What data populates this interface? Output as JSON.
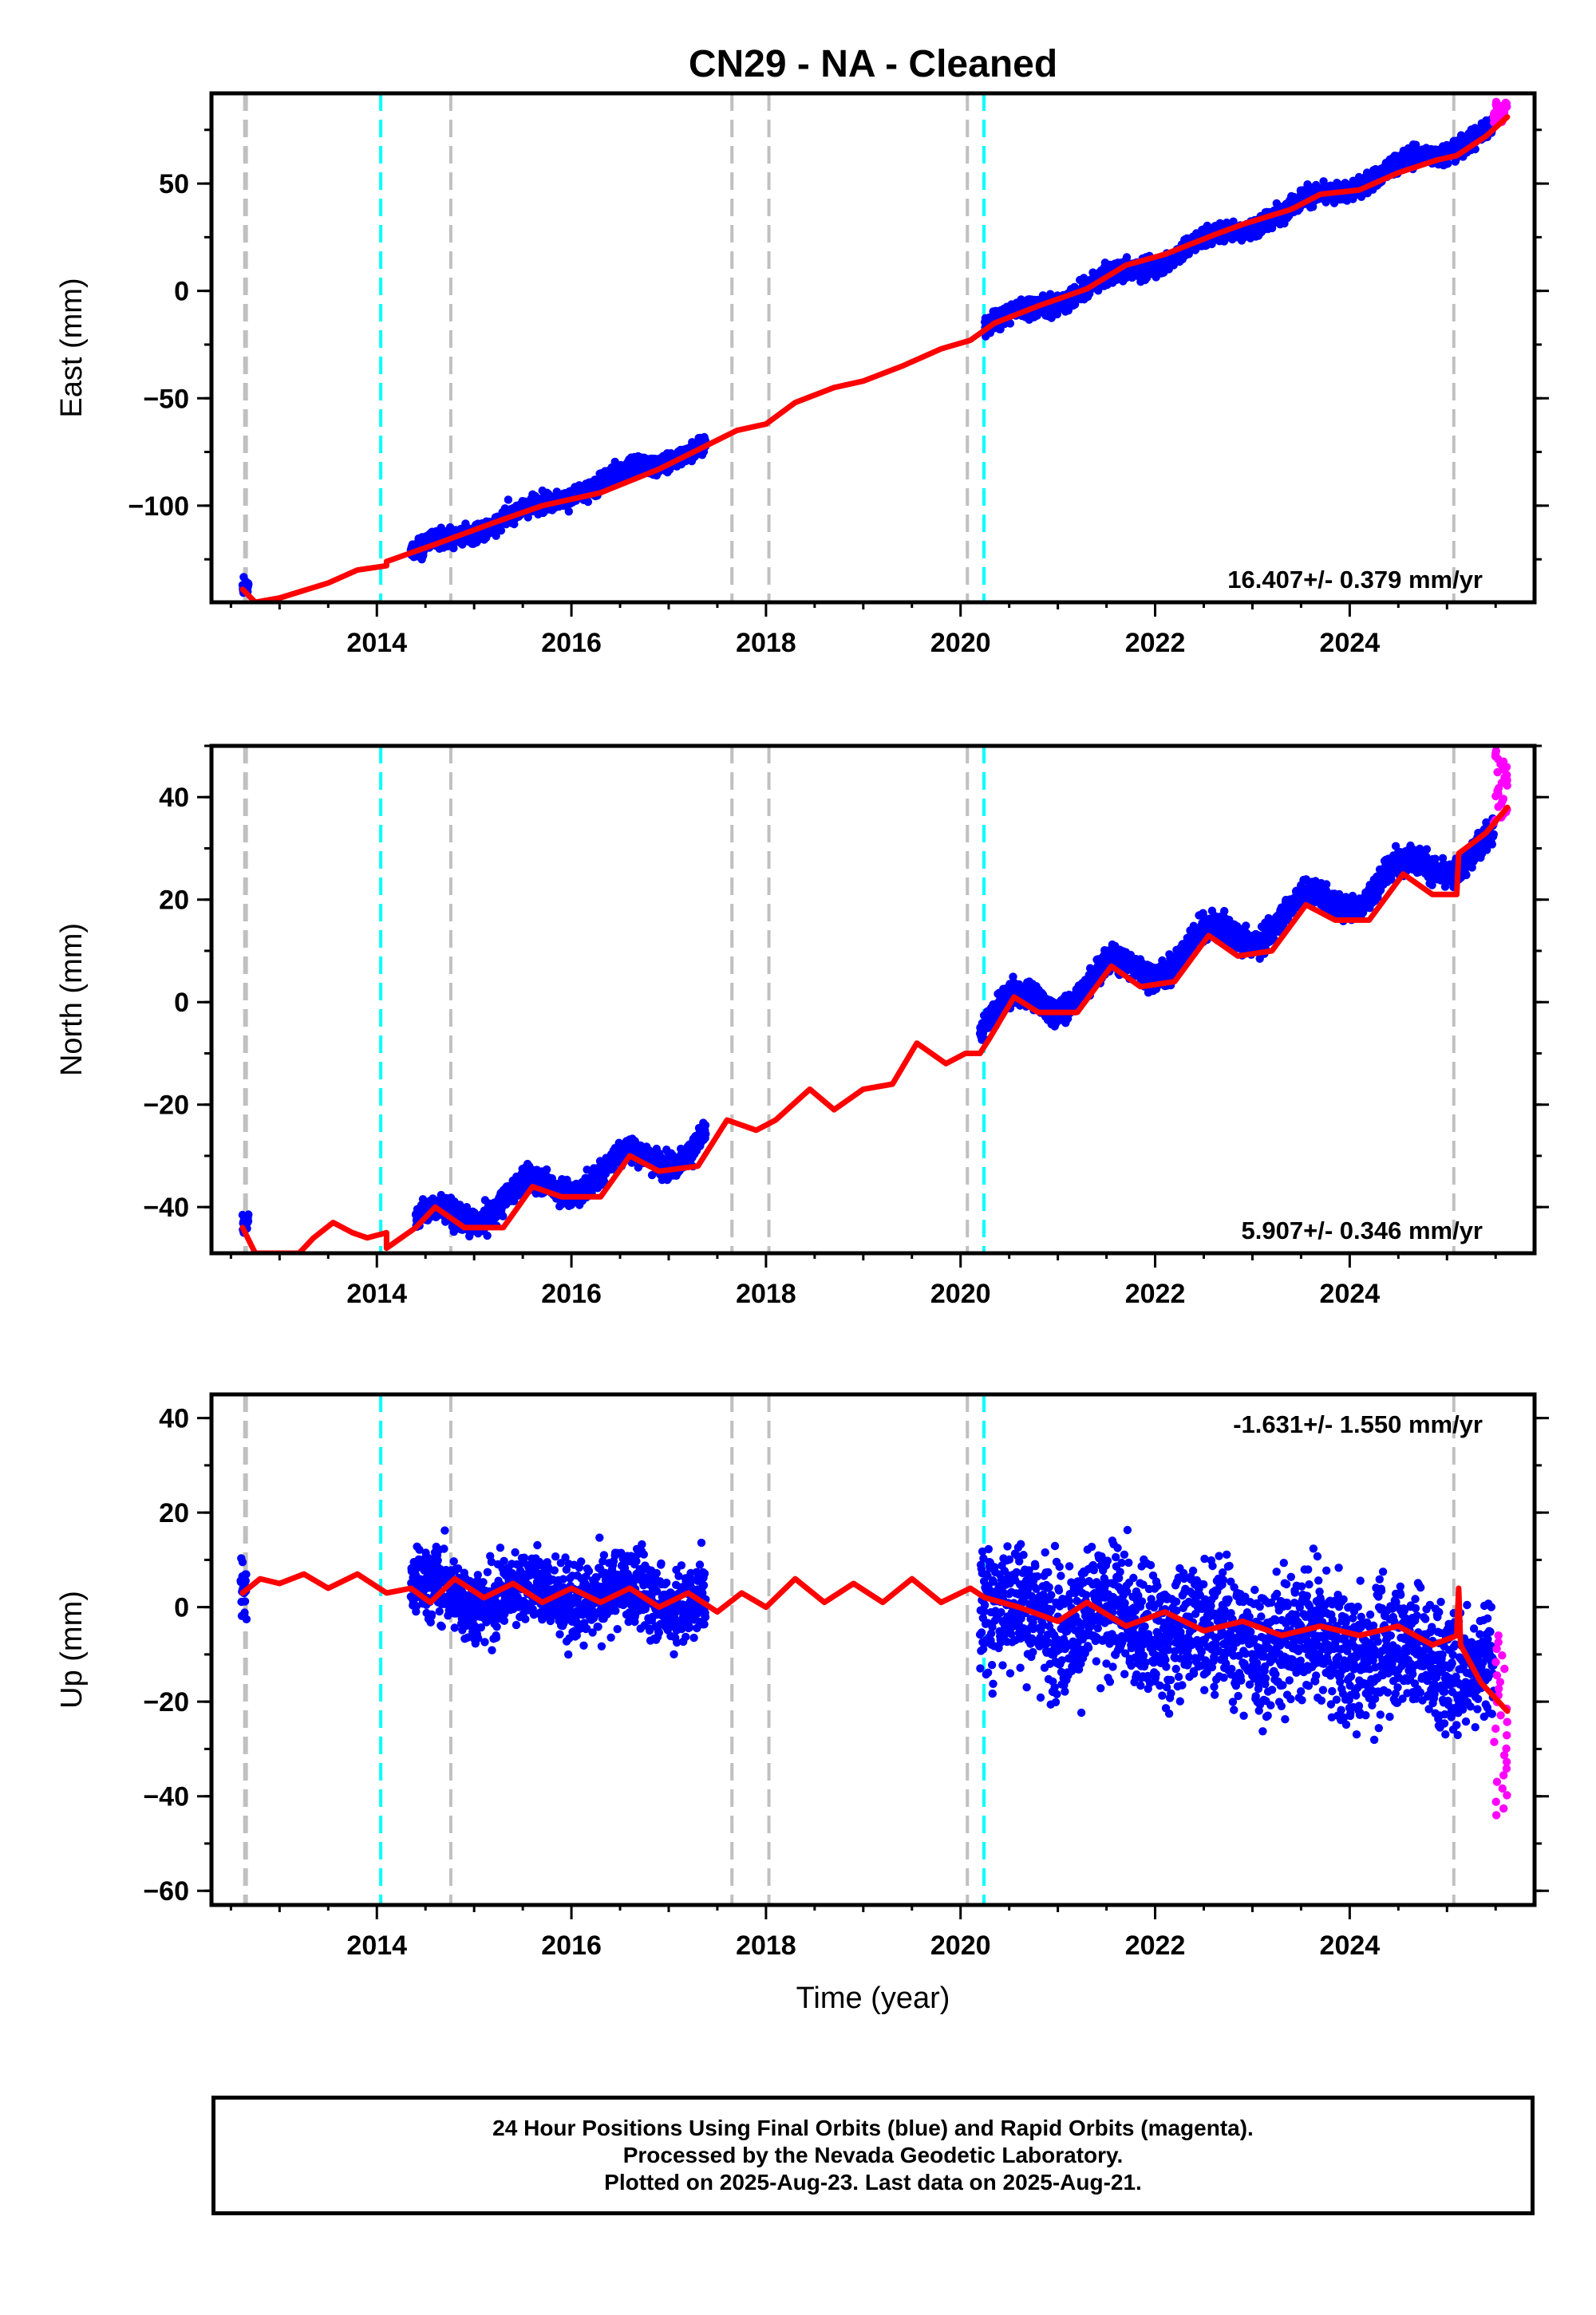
{
  "title": "CN29  - NA - Cleaned",
  "xlabel": "Time (year)",
  "colors": {
    "final": "#0000ff",
    "rapid": "#ff00ff",
    "model": "#ff0000",
    "offset_equipment": "#c0c0c0",
    "offset_eq": "#00ffff"
  },
  "chart_data": [
    {
      "type": "scatter",
      "component": "East",
      "ylabel": "East (mm)",
      "rate": "16.407+/- 0.379 mm/yr",
      "rate_position": "bottom-right",
      "xlim": [
        2012.3,
        2025.9
      ],
      "ylim": [
        -145,
        92
      ],
      "yticks": [
        -100,
        -50,
        0,
        50
      ],
      "xticks": [
        2014,
        2016,
        2018,
        2020,
        2022,
        2024
      ],
      "segments": [
        {
          "x_start": 2012.62,
          "x_end": 2012.68,
          "y_start": -138.5,
          "y_end": -137.5,
          "scatter": 2.5
        },
        {
          "x_start": 2014.35,
          "x_end": 2017.38,
          "y_start": -122,
          "y_end": -71.5,
          "scatter": 3.0,
          "annual": 2.0
        },
        {
          "x_start": 2020.25,
          "x_end": 2025.48,
          "y_start": -17,
          "y_end": 75,
          "scatter": 3.2,
          "annual": 2.5
        }
      ],
      "rapid": {
        "x_start": 2025.48,
        "x_end": 2025.62,
        "y_min": 78,
        "y_max": 88
      },
      "model": [
        [
          2012.62,
          -139
        ],
        [
          2012.75,
          -145
        ],
        [
          2013.0,
          -143
        ],
        [
          2013.5,
          -136
        ],
        [
          2013.8,
          -130
        ],
        [
          2014.1,
          -128
        ],
        [
          2014.1,
          -126
        ],
        [
          2014.6,
          -118
        ],
        [
          2015.2,
          -108
        ],
        [
          2015.7,
          -100
        ],
        [
          2016.3,
          -94
        ],
        [
          2016.9,
          -83
        ],
        [
          2017.3,
          -74
        ],
        [
          2017.7,
          -65
        ],
        [
          2018.0,
          -62
        ],
        [
          2018.3,
          -52
        ],
        [
          2018.7,
          -45
        ],
        [
          2019.0,
          -42
        ],
        [
          2019.4,
          -35
        ],
        [
          2019.8,
          -27
        ],
        [
          2020.1,
          -23
        ],
        [
          2020.35,
          -15
        ],
        [
          2020.8,
          -7
        ],
        [
          2021.3,
          1
        ],
        [
          2021.7,
          12
        ],
        [
          2022.1,
          17
        ],
        [
          2022.6,
          26
        ],
        [
          2022.9,
          31
        ],
        [
          2023.4,
          38
        ],
        [
          2023.7,
          45
        ],
        [
          2024.1,
          47
        ],
        [
          2024.5,
          55
        ],
        [
          2024.9,
          61
        ],
        [
          2025.1,
          63
        ],
        [
          2025.4,
          72
        ],
        [
          2025.62,
          81
        ]
      ]
    },
    {
      "type": "scatter",
      "component": "North",
      "ylabel": "North (mm)",
      "rate": "5.907+/- 0.346 mm/yr",
      "rate_position": "bottom-right",
      "xlim": [
        2012.3,
        2025.9
      ],
      "ylim": [
        -49,
        50
      ],
      "yticks": [
        -40,
        -20,
        0,
        20,
        40
      ],
      "xticks": [
        2014,
        2016,
        2018,
        2020,
        2022,
        2024
      ],
      "segments": [
        {
          "x_start": 2012.62,
          "x_end": 2012.68,
          "y_start": -43,
          "y_end": -42.5,
          "scatter": 1.5
        },
        {
          "x_start": 2014.4,
          "x_end": 2017.38,
          "y_start": -44,
          "y_end": -27,
          "scatter": 1.7,
          "annual": 2.8
        },
        {
          "x_start": 2020.2,
          "x_end": 2025.48,
          "y_start": -4,
          "y_end": 31,
          "scatter": 1.8,
          "annual": 3.2
        }
      ],
      "rapid": {
        "x_start": 2025.48,
        "x_end": 2025.62,
        "y_min": 35,
        "y_max": 49
      },
      "model": [
        [
          2012.62,
          -44
        ],
        [
          2012.75,
          -49
        ],
        [
          2012.95,
          -49
        ],
        [
          2013.2,
          -49
        ],
        [
          2013.35,
          -46
        ],
        [
          2013.55,
          -43
        ],
        [
          2013.75,
          -45
        ],
        [
          2013.9,
          -46
        ],
        [
          2014.1,
          -45
        ],
        [
          2014.1,
          -48
        ],
        [
          2014.4,
          -44
        ],
        [
          2014.6,
          -40
        ],
        [
          2014.9,
          -44
        ],
        [
          2015.3,
          -44
        ],
        [
          2015.6,
          -36
        ],
        [
          2015.9,
          -38
        ],
        [
          2016.3,
          -38
        ],
        [
          2016.6,
          -30
        ],
        [
          2016.9,
          -33
        ],
        [
          2017.3,
          -32
        ],
        [
          2017.6,
          -23
        ],
        [
          2017.9,
          -25
        ],
        [
          2018.1,
          -23
        ],
        [
          2018.45,
          -17
        ],
        [
          2018.7,
          -21
        ],
        [
          2019.0,
          -17
        ],
        [
          2019.3,
          -16
        ],
        [
          2019.55,
          -8
        ],
        [
          2019.85,
          -12
        ],
        [
          2020.05,
          -10
        ],
        [
          2020.2,
          -10
        ],
        [
          2020.3,
          -7
        ],
        [
          2020.55,
          1
        ],
        [
          2020.8,
          -2
        ],
        [
          2021.2,
          -2
        ],
        [
          2021.55,
          7
        ],
        [
          2021.85,
          3
        ],
        [
          2022.2,
          4
        ],
        [
          2022.55,
          13
        ],
        [
          2022.85,
          9
        ],
        [
          2023.2,
          10
        ],
        [
          2023.55,
          19
        ],
        [
          2023.85,
          16
        ],
        [
          2024.2,
          16
        ],
        [
          2024.55,
          25
        ],
        [
          2024.85,
          21
        ],
        [
          2025.1,
          21
        ],
        [
          2025.12,
          29
        ],
        [
          2025.4,
          33
        ],
        [
          2025.62,
          38
        ]
      ]
    },
    {
      "type": "scatter",
      "component": "Up",
      "ylabel": "Up (mm)",
      "rate": "-1.631+/- 1.550 mm/yr",
      "rate_position": "top-right",
      "xlim": [
        2012.3,
        2025.9
      ],
      "ylim": [
        -63,
        45
      ],
      "yticks": [
        -60,
        -40,
        -20,
        0,
        20,
        40
      ],
      "xticks": [
        2014,
        2016,
        2018,
        2020,
        2022,
        2024
      ],
      "segments": [
        {
          "x_start": 2012.6,
          "x_end": 2012.66,
          "y_start": 5,
          "y_end": 3,
          "scatter": 6.0
        },
        {
          "x_start": 2014.35,
          "x_end": 2017.38,
          "y_start": 3,
          "y_end": 2,
          "scatter": 5.5,
          "annual": 2.5
        },
        {
          "x_start": 2020.2,
          "x_end": 2025.48,
          "y_start": 0,
          "y_end": -12,
          "scatter": 9.5,
          "annual": 2.5
        }
      ],
      "rapid": {
        "x_start": 2025.48,
        "x_end": 2025.62,
        "y_min": -44,
        "y_max": -6
      },
      "model": [
        [
          2012.62,
          3
        ],
        [
          2012.8,
          6
        ],
        [
          2013.0,
          5
        ],
        [
          2013.25,
          7
        ],
        [
          2013.5,
          4
        ],
        [
          2013.8,
          7
        ],
        [
          2014.1,
          3
        ],
        [
          2014.35,
          4
        ],
        [
          2014.55,
          1
        ],
        [
          2014.8,
          6
        ],
        [
          2015.1,
          2
        ],
        [
          2015.4,
          5
        ],
        [
          2015.7,
          1
        ],
        [
          2016.0,
          4
        ],
        [
          2016.3,
          1
        ],
        [
          2016.6,
          4
        ],
        [
          2016.9,
          0
        ],
        [
          2017.2,
          3
        ],
        [
          2017.5,
          -1
        ],
        [
          2017.75,
          3
        ],
        [
          2018.0,
          0
        ],
        [
          2018.3,
          6
        ],
        [
          2018.6,
          1
        ],
        [
          2018.9,
          5
        ],
        [
          2019.2,
          1
        ],
        [
          2019.5,
          6
        ],
        [
          2019.8,
          1
        ],
        [
          2020.1,
          4
        ],
        [
          2020.25,
          2
        ],
        [
          2020.6,
          0
        ],
        [
          2021.0,
          -3
        ],
        [
          2021.3,
          1
        ],
        [
          2021.7,
          -4
        ],
        [
          2022.1,
          -1
        ],
        [
          2022.5,
          -5
        ],
        [
          2022.9,
          -3
        ],
        [
          2023.3,
          -6
        ],
        [
          2023.7,
          -4
        ],
        [
          2024.1,
          -6
        ],
        [
          2024.5,
          -4
        ],
        [
          2024.85,
          -8
        ],
        [
          2025.1,
          -6
        ],
        [
          2025.12,
          4
        ],
        [
          2025.14,
          -8
        ],
        [
          2025.35,
          -16
        ],
        [
          2025.62,
          -22
        ]
      ]
    }
  ],
  "vertical_lines": {
    "equipment_change": [
      2012.65,
      2014.76,
      2017.65,
      2018.03,
      2020.07,
      2025.07
    ],
    "earthquake": [
      2014.04,
      2020.24
    ]
  },
  "note": {
    "line1": "24 Hour Positions Using Final Orbits (blue) and Rapid Orbits (magenta).",
    "line2": "Processed by the Nevada Geodetic Laboratory.",
    "line3": "Plotted on 2025-Aug-23. Last data on 2025-Aug-21."
  }
}
